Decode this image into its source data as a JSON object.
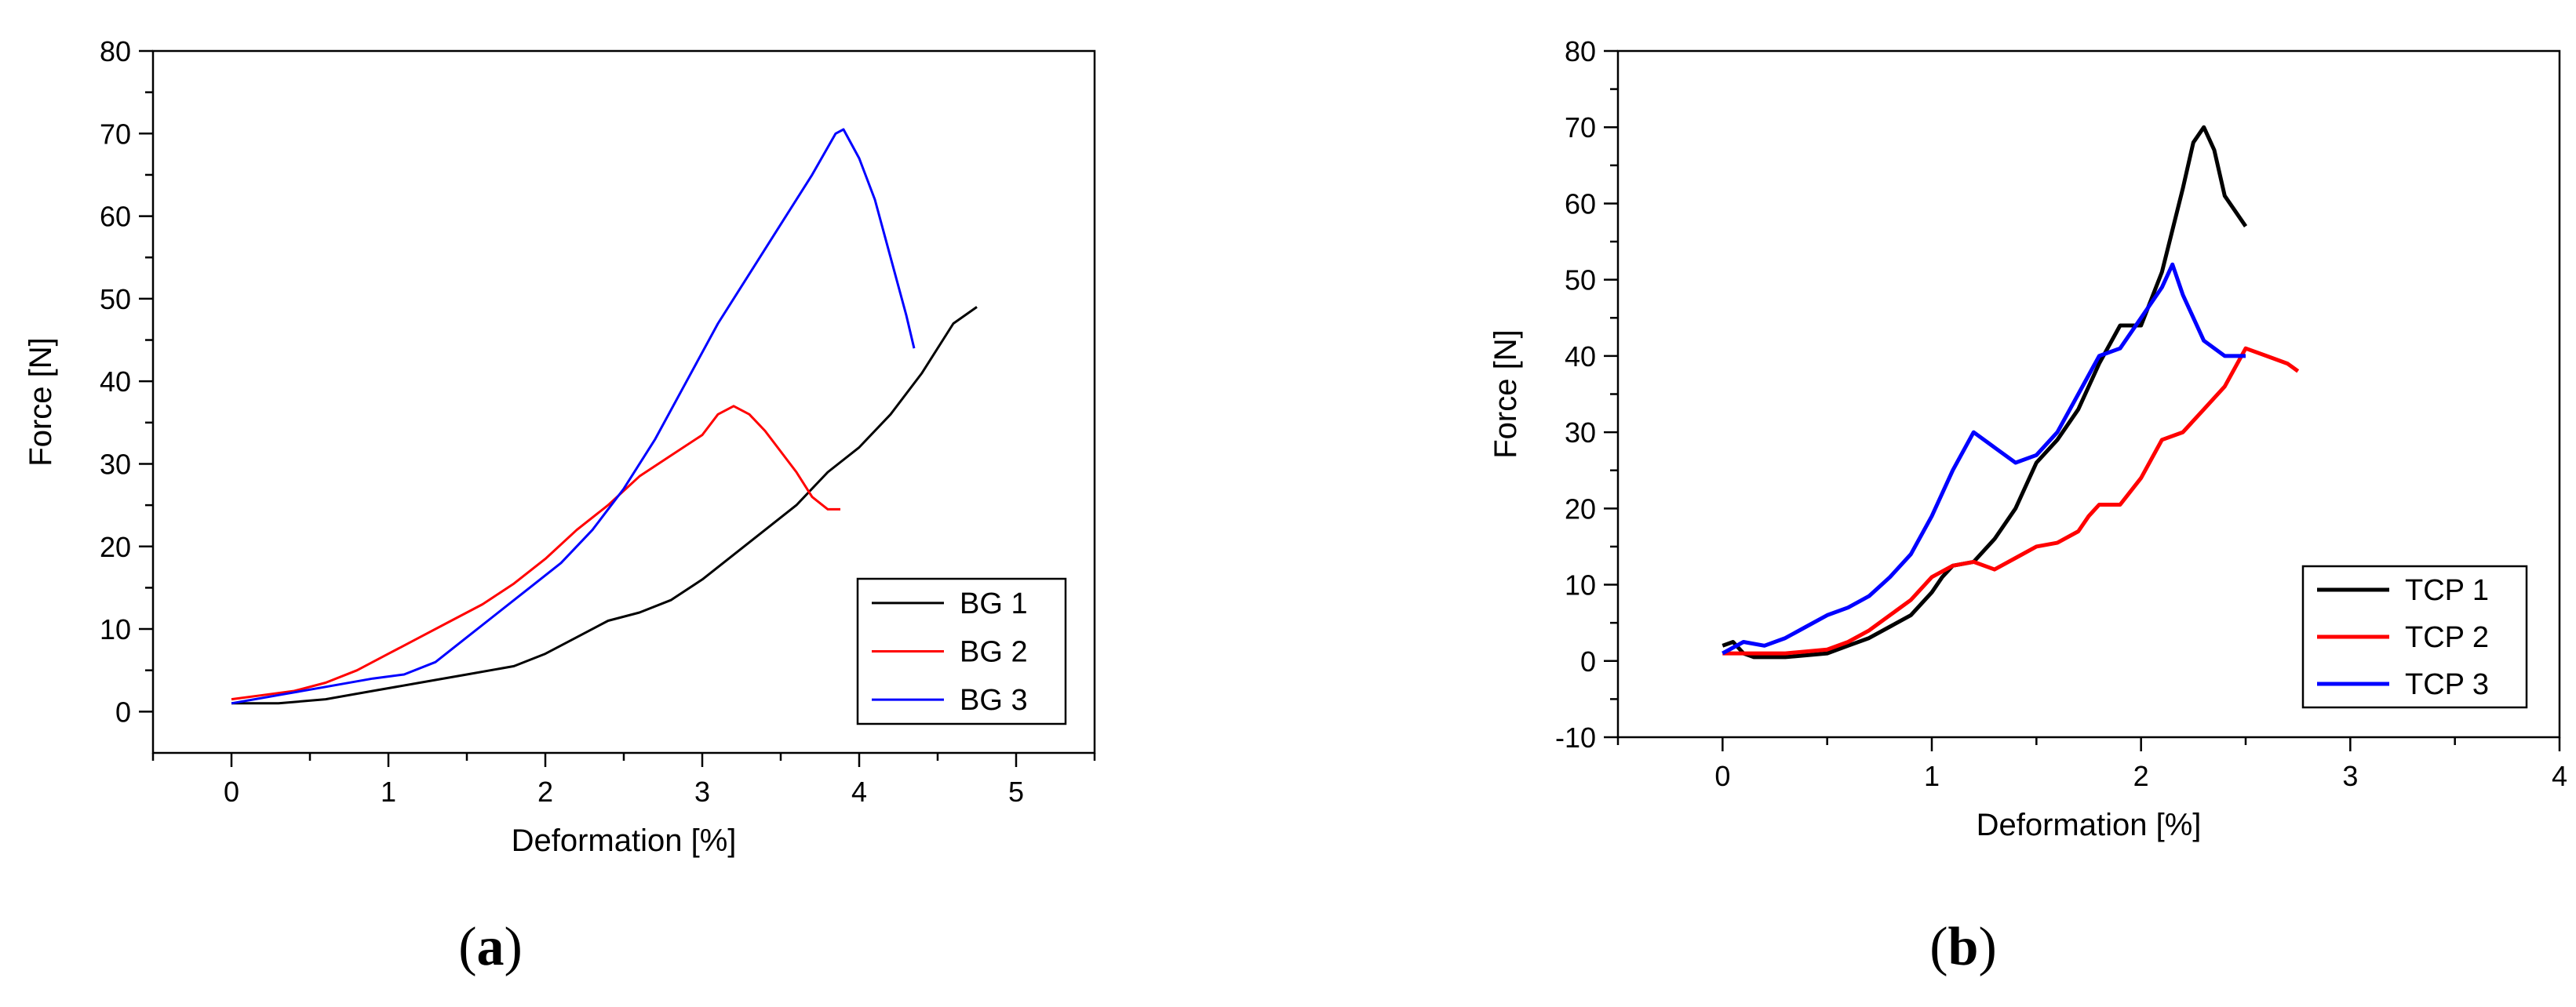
{
  "chart_data": [
    {
      "type": "line",
      "panel_label": "(a)",
      "xlabel": "Deformation [%]",
      "ylabel": "Force [N]",
      "xlim": [
        -0.5,
        5.5
      ],
      "ylim": [
        -5,
        80
      ],
      "xticks": [
        0,
        1,
        2,
        3,
        4,
        5
      ],
      "yticks": [
        0,
        10,
        20,
        30,
        40,
        50,
        60,
        70,
        80
      ],
      "grid": false,
      "legend_position": "bottom-right",
      "series": [
        {
          "name": "BG 1",
          "color": "#000000",
          "points": [
            [
              0,
              1
            ],
            [
              0.3,
              1
            ],
            [
              0.6,
              1.5
            ],
            [
              0.9,
              2.5
            ],
            [
              1.2,
              3.5
            ],
            [
              1.5,
              4.5
            ],
            [
              1.8,
              5.5
            ],
            [
              2.0,
              7
            ],
            [
              2.2,
              9
            ],
            [
              2.4,
              11
            ],
            [
              2.6,
              12
            ],
            [
              2.8,
              13.5
            ],
            [
              3.0,
              16
            ],
            [
              3.2,
              19
            ],
            [
              3.4,
              22
            ],
            [
              3.6,
              25
            ],
            [
              3.8,
              29
            ],
            [
              4.0,
              32
            ],
            [
              4.2,
              36
            ],
            [
              4.4,
              41
            ],
            [
              4.6,
              47
            ],
            [
              4.75,
              49
            ]
          ]
        },
        {
          "name": "BG 2",
          "color": "#ff0000",
          "points": [
            [
              0,
              1.5
            ],
            [
              0.2,
              2
            ],
            [
              0.4,
              2.5
            ],
            [
              0.6,
              3.5
            ],
            [
              0.8,
              5
            ],
            [
              1.0,
              7
            ],
            [
              1.2,
              9
            ],
            [
              1.4,
              11
            ],
            [
              1.6,
              13
            ],
            [
              1.8,
              15.5
            ],
            [
              2.0,
              18.5
            ],
            [
              2.2,
              22
            ],
            [
              2.4,
              25
            ],
            [
              2.6,
              28.5
            ],
            [
              2.8,
              31
            ],
            [
              3.0,
              33.5
            ],
            [
              3.1,
              36
            ],
            [
              3.2,
              37
            ],
            [
              3.3,
              36
            ],
            [
              3.4,
              34
            ],
            [
              3.6,
              29
            ],
            [
              3.7,
              26
            ],
            [
              3.8,
              24.5
            ],
            [
              3.88,
              24.5
            ]
          ]
        },
        {
          "name": "BG 3",
          "color": "#0000ff",
          "points": [
            [
              0,
              1
            ],
            [
              0.3,
              2
            ],
            [
              0.6,
              3
            ],
            [
              0.9,
              4
            ],
            [
              1.1,
              4.5
            ],
            [
              1.3,
              6
            ],
            [
              1.5,
              9
            ],
            [
              1.7,
              12
            ],
            [
              1.9,
              15
            ],
            [
              2.1,
              18
            ],
            [
              2.3,
              22
            ],
            [
              2.5,
              27
            ],
            [
              2.7,
              33
            ],
            [
              2.9,
              40
            ],
            [
              3.1,
              47
            ],
            [
              3.3,
              53
            ],
            [
              3.5,
              59
            ],
            [
              3.7,
              65
            ],
            [
              3.85,
              70
            ],
            [
              3.9,
              70.5
            ],
            [
              4.0,
              67
            ],
            [
              4.1,
              62
            ],
            [
              4.2,
              55
            ],
            [
              4.3,
              48
            ],
            [
              4.35,
              44
            ]
          ]
        }
      ]
    },
    {
      "type": "line",
      "panel_label": "(b)",
      "xlabel": "Deformation [%]",
      "ylabel": "Force [N]",
      "xlim": [
        -0.5,
        4
      ],
      "ylim": [
        -10,
        80
      ],
      "xticks": [
        0,
        1,
        2,
        3,
        4
      ],
      "yticks": [
        -10,
        0,
        10,
        20,
        30,
        40,
        50,
        60,
        70,
        80
      ],
      "grid": false,
      "legend_position": "bottom-right",
      "series": [
        {
          "name": "TCP 1",
          "color": "#000000",
          "points": [
            [
              0,
              2
            ],
            [
              0.05,
              2.5
            ],
            [
              0.1,
              1
            ],
            [
              0.15,
              0.5
            ],
            [
              0.3,
              0.5
            ],
            [
              0.5,
              1
            ],
            [
              0.6,
              2
            ],
            [
              0.7,
              3
            ],
            [
              0.8,
              4.5
            ],
            [
              0.9,
              6
            ],
            [
              1.0,
              9
            ],
            [
              1.05,
              11
            ],
            [
              1.1,
              12.5
            ],
            [
              1.2,
              13
            ],
            [
              1.3,
              16
            ],
            [
              1.4,
              20
            ],
            [
              1.5,
              26
            ],
            [
              1.6,
              29
            ],
            [
              1.7,
              33
            ],
            [
              1.8,
              39
            ],
            [
              1.9,
              44
            ],
            [
              2.0,
              44
            ],
            [
              2.1,
              51
            ],
            [
              2.2,
              62
            ],
            [
              2.25,
              68
            ],
            [
              2.3,
              70
            ],
            [
              2.35,
              67
            ],
            [
              2.4,
              61
            ],
            [
              2.45,
              59
            ],
            [
              2.5,
              57
            ]
          ]
        },
        {
          "name": "TCP 2",
          "color": "#ff0000",
          "points": [
            [
              0,
              1
            ],
            [
              0.3,
              1
            ],
            [
              0.5,
              1.5
            ],
            [
              0.6,
              2.5
            ],
            [
              0.7,
              4
            ],
            [
              0.8,
              6
            ],
            [
              0.9,
              8
            ],
            [
              1.0,
              11
            ],
            [
              1.1,
              12.5
            ],
            [
              1.2,
              13
            ],
            [
              1.3,
              12
            ],
            [
              1.4,
              13.5
            ],
            [
              1.5,
              15
            ],
            [
              1.6,
              15.5
            ],
            [
              1.7,
              17
            ],
            [
              1.75,
              19
            ],
            [
              1.8,
              20.5
            ],
            [
              1.9,
              20.5
            ],
            [
              2.0,
              24
            ],
            [
              2.1,
              29
            ],
            [
              2.2,
              30
            ],
            [
              2.3,
              33
            ],
            [
              2.4,
              36
            ],
            [
              2.5,
              41
            ],
            [
              2.6,
              40
            ],
            [
              2.7,
              39
            ],
            [
              2.75,
              38
            ]
          ]
        },
        {
          "name": "TCP 3",
          "color": "#0000ff",
          "points": [
            [
              0,
              1
            ],
            [
              0.1,
              2.5
            ],
            [
              0.2,
              2
            ],
            [
              0.3,
              3
            ],
            [
              0.4,
              4.5
            ],
            [
              0.5,
              6
            ],
            [
              0.6,
              7
            ],
            [
              0.7,
              8.5
            ],
            [
              0.8,
              11
            ],
            [
              0.9,
              14
            ],
            [
              1.0,
              19
            ],
            [
              1.1,
              25
            ],
            [
              1.2,
              30
            ],
            [
              1.3,
              28
            ],
            [
              1.4,
              26
            ],
            [
              1.5,
              27
            ],
            [
              1.6,
              30
            ],
            [
              1.7,
              35
            ],
            [
              1.8,
              40
            ],
            [
              1.9,
              41
            ],
            [
              2.0,
              45
            ],
            [
              2.1,
              49
            ],
            [
              2.15,
              52
            ],
            [
              2.2,
              48
            ],
            [
              2.3,
              42
            ],
            [
              2.4,
              40
            ],
            [
              2.5,
              40
            ]
          ]
        }
      ]
    }
  ]
}
